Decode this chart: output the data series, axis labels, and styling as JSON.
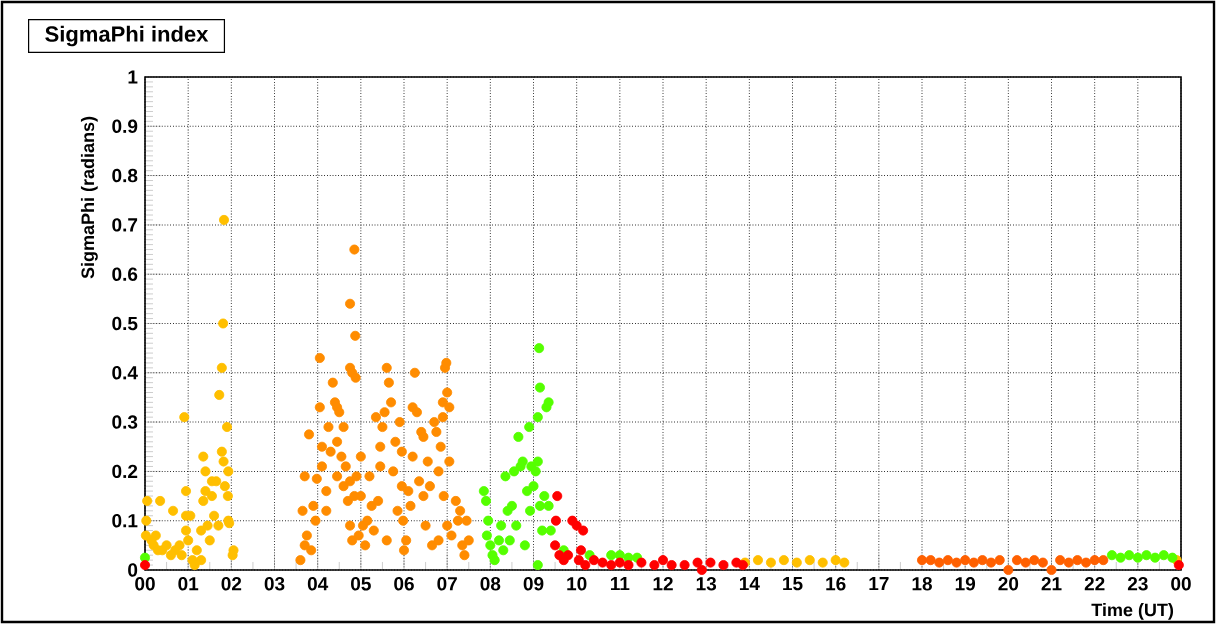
{
  "chart_data": {
    "type": "scatter",
    "title": "SigmaPhi index",
    "xlabel": "Time (UT)",
    "ylabel": "SigmaPhi (radians)",
    "xlim": [
      0,
      24
    ],
    "ylim": [
      0,
      1
    ],
    "xticks": [
      {
        "value": 0,
        "label": "00"
      },
      {
        "value": 1,
        "label": "01"
      },
      {
        "value": 2,
        "label": "02"
      },
      {
        "value": 3,
        "label": "03"
      },
      {
        "value": 4,
        "label": "04"
      },
      {
        "value": 5,
        "label": "05"
      },
      {
        "value": 6,
        "label": "06"
      },
      {
        "value": 7,
        "label": "07"
      },
      {
        "value": 8,
        "label": "08"
      },
      {
        "value": 9,
        "label": "09"
      },
      {
        "value": 10,
        "label": "10"
      },
      {
        "value": 11,
        "label": "11"
      },
      {
        "value": 12,
        "label": "12"
      },
      {
        "value": 13,
        "label": "13"
      },
      {
        "value": 14,
        "label": "14"
      },
      {
        "value": 15,
        "label": "15"
      },
      {
        "value": 16,
        "label": "16"
      },
      {
        "value": 17,
        "label": "17"
      },
      {
        "value": 18,
        "label": "18"
      },
      {
        "value": 19,
        "label": "19"
      },
      {
        "value": 20,
        "label": "20"
      },
      {
        "value": 21,
        "label": "21"
      },
      {
        "value": 22,
        "label": "22"
      },
      {
        "value": 23,
        "label": "23"
      },
      {
        "value": 24,
        "label": "00"
      }
    ],
    "yticks": [
      0,
      0.1,
      0.2,
      0.3,
      0.4,
      0.5,
      0.6,
      0.7,
      0.8,
      0.9,
      1
    ],
    "grid": true,
    "series": [
      {
        "color": "#ffbf00",
        "x": [
          0.05,
          0.02,
          0.03,
          0.35,
          0.25,
          0.2,
          0.4,
          0.5,
          0.65,
          0.7,
          0.85,
          0.91,
          0.95,
          0.95,
          0.95,
          1.0,
          1.1,
          1.15,
          1.3,
          1.35,
          1.4,
          1.35,
          1.4,
          1.3,
          1.45,
          1.5,
          1.55,
          1.55,
          1.6,
          1.7,
          1.65,
          1.83,
          1.81,
          1.78,
          1.72,
          1.78,
          1.82,
          1.9,
          1.93,
          1.92,
          1.93,
          1.95,
          2.05,
          2.03,
          1.85,
          0.15,
          0.3,
          0.6,
          0.8,
          1.2,
          1.05,
          13.9,
          14.2,
          14.5,
          14.8,
          15.1,
          15.4,
          15.7,
          16.0,
          16.2,
          23.9
        ],
        "values": [
          0.14,
          0.07,
          0.1,
          0.14,
          0.07,
          0.05,
          0.04,
          0.05,
          0.12,
          0.04,
          0.03,
          0.31,
          0.16,
          0.11,
          0.08,
          0.06,
          0.02,
          0.01,
          0.02,
          0.23,
          0.2,
          0.14,
          0.16,
          0.08,
          0.09,
          0.06,
          0.18,
          0.15,
          0.11,
          0.09,
          0.18,
          0.71,
          0.5,
          0.41,
          0.355,
          0.24,
          0.22,
          0.29,
          0.2,
          0.15,
          0.1,
          0.095,
          0.04,
          0.03,
          0.17,
          0.06,
          0.04,
          0.03,
          0.05,
          0.04,
          0.11,
          0.015,
          0.02,
          0.015,
          0.02,
          0.015,
          0.02,
          0.015,
          0.02,
          0.015,
          0.02
        ]
      },
      {
        "color": "#ff8c00",
        "x": [
          3.65,
          3.7,
          3.75,
          3.6,
          3.7,
          3.8,
          3.9,
          3.95,
          3.85,
          3.98,
          4.05,
          4.05,
          4.1,
          4.1,
          4.2,
          4.2,
          4.25,
          4.3,
          4.35,
          4.4,
          4.45,
          4.45,
          4.5,
          4.45,
          4.55,
          4.6,
          4.65,
          4.6,
          4.7,
          4.75,
          4.75,
          4.8,
          4.85,
          4.87,
          4.88,
          4.75,
          4.75,
          4.8,
          4.85,
          4.9,
          4.95,
          5.0,
          5.0,
          5.05,
          5.1,
          5.15,
          5.2,
          5.25,
          5.35,
          5.4,
          5.45,
          5.5,
          5.45,
          5.55,
          5.6,
          5.65,
          5.6,
          5.7,
          5.75,
          5.8,
          5.85,
          5.9,
          5.95,
          5.95,
          5.98,
          6.0,
          6.05,
          6.1,
          6.15,
          6.2,
          6.2,
          6.25,
          6.3,
          6.35,
          6.4,
          6.45,
          6.45,
          6.5,
          6.55,
          6.6,
          6.65,
          6.7,
          6.75,
          6.8,
          6.85,
          6.9,
          6.9,
          6.92,
          6.95,
          6.98,
          7.0,
          7.05,
          7.05,
          7.1,
          7.2,
          7.25,
          7.3,
          7.35,
          7.4,
          7.45,
          7.5,
          6.8,
          7.0,
          5.3
        ],
        "values": [
          0.12,
          0.19,
          0.07,
          0.02,
          0.05,
          0.275,
          0.13,
          0.1,
          0.04,
          0.185,
          0.33,
          0.43,
          0.25,
          0.21,
          0.16,
          0.12,
          0.29,
          0.24,
          0.38,
          0.34,
          0.33,
          0.26,
          0.32,
          0.19,
          0.23,
          0.29,
          0.21,
          0.17,
          0.14,
          0.54,
          0.41,
          0.4,
          0.65,
          0.475,
          0.39,
          0.18,
          0.09,
          0.06,
          0.15,
          0.19,
          0.07,
          0.23,
          0.15,
          0.09,
          0.05,
          0.1,
          0.19,
          0.13,
          0.31,
          0.14,
          0.25,
          0.29,
          0.21,
          0.32,
          0.41,
          0.38,
          0.06,
          0.34,
          0.2,
          0.26,
          0.12,
          0.3,
          0.24,
          0.17,
          0.1,
          0.04,
          0.06,
          0.16,
          0.13,
          0.33,
          0.23,
          0.4,
          0.32,
          0.18,
          0.28,
          0.27,
          0.15,
          0.09,
          0.22,
          0.17,
          0.05,
          0.3,
          0.28,
          0.2,
          0.25,
          0.34,
          0.31,
          0.15,
          0.41,
          0.42,
          0.36,
          0.33,
          0.22,
          0.07,
          0.14,
          0.1,
          0.12,
          0.05,
          0.03,
          0.1,
          0.06,
          0.06,
          0.09,
          0.08
        ]
      },
      {
        "color": "#55ff00",
        "x": [
          7.85,
          7.9,
          7.95,
          7.92,
          8.0,
          8.05,
          8.1,
          8.2,
          8.25,
          8.3,
          8.35,
          8.4,
          8.45,
          8.5,
          8.55,
          8.6,
          8.65,
          8.7,
          8.75,
          8.8,
          8.85,
          8.9,
          8.92,
          8.95,
          9.0,
          9.05,
          9.1,
          9.13,
          9.15,
          9.1,
          9.15,
          9.2,
          9.25,
          9.3,
          9.35,
          9.35,
          9.4,
          9.55,
          9.7,
          9.9,
          10.1,
          10.3,
          10.5,
          10.8,
          11.0,
          11.2,
          11.4,
          9.1,
          0.0,
          22.4,
          22.6,
          22.8,
          23.0,
          23.2,
          23.4,
          23.6,
          23.8
        ],
        "values": [
          0.16,
          0.14,
          0.1,
          0.07,
          0.05,
          0.03,
          0.02,
          0.06,
          0.09,
          0.04,
          0.19,
          0.12,
          0.06,
          0.13,
          0.2,
          0.09,
          0.27,
          0.21,
          0.22,
          0.05,
          0.16,
          0.29,
          0.12,
          0.21,
          0.17,
          0.2,
          0.31,
          0.45,
          0.37,
          0.22,
          0.13,
          0.08,
          0.15,
          0.33,
          0.34,
          0.13,
          0.08,
          null,
          0.04,
          null,
          null,
          0.03,
          null,
          0.03,
          0.03,
          0.025,
          0.025,
          0.01,
          0.025,
          0.03,
          0.025,
          0.03,
          0.025,
          0.03,
          0.025,
          0.03,
          0.025
        ]
      },
      {
        "color": "#ff0000",
        "x": [
          9.5,
          9.52,
          9.55,
          9.6,
          9.7,
          9.8,
          9.9,
          10.0,
          10.05,
          10.1,
          10.15,
          10.2,
          10.4,
          10.6,
          10.8,
          11.0,
          11.2,
          11.5,
          11.8,
          12.0,
          12.2,
          12.5,
          12.8,
          12.9,
          13.1,
          13.4,
          13.7,
          13.85,
          0.0,
          23.95
        ],
        "values": [
          0.05,
          0.1,
          0.15,
          0.03,
          0.02,
          0.03,
          0.1,
          0.09,
          0.02,
          0.04,
          0.08,
          0.01,
          0.02,
          0.015,
          0.01,
          0.015,
          0.01,
          0.015,
          0.01,
          0.02,
          0.01,
          0.01,
          0.015,
          0.0,
          0.015,
          0.01,
          0.015,
          0.01,
          0.01,
          0.01
        ]
      },
      {
        "color": "#ff6000",
        "x": [
          18.0,
          18.2,
          18.4,
          18.6,
          18.8,
          19.0,
          19.2,
          19.4,
          19.6,
          19.8,
          20.0,
          20.2,
          20.4,
          20.6,
          20.8,
          21.0,
          21.2,
          21.4,
          21.6,
          21.8,
          22.0,
          22.2
        ],
        "values": [
          0.02,
          0.02,
          0.015,
          0.02,
          0.015,
          0.02,
          0.015,
          0.02,
          0.015,
          0.02,
          0.0,
          0.02,
          0.015,
          0.02,
          0.015,
          0.0,
          0.02,
          0.015,
          0.02,
          0.015,
          0.02,
          0.02
        ]
      }
    ]
  }
}
